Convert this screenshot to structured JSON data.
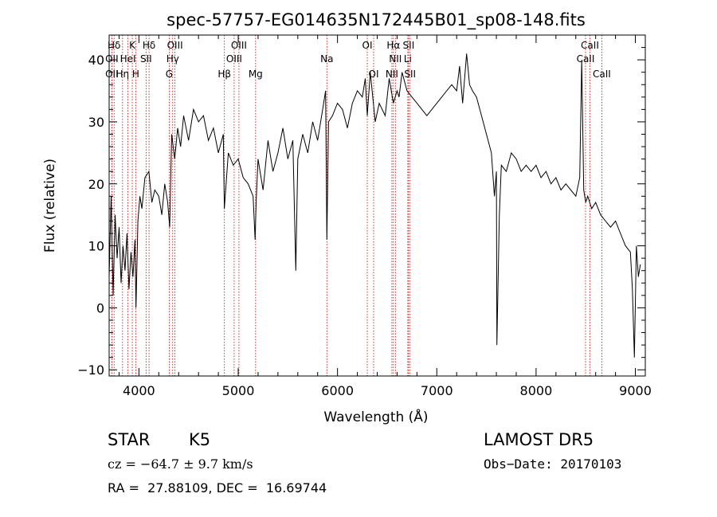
{
  "chart_data": {
    "type": "line",
    "title": "spec-57757-EG014635N172445B01_sp08-148.fits",
    "xlabel": "Wavelength (Å)",
    "ylabel": "Flux (relative)",
    "xlim": [
      3700,
      9100
    ],
    "ylim": [
      -11,
      44
    ],
    "xticks": [
      4000,
      5000,
      6000,
      7000,
      8000,
      9000
    ],
    "yticks": [
      -10,
      0,
      10,
      20,
      30,
      40
    ],
    "grid": false,
    "series": [
      {
        "color": "#000000",
        "x": [
          3700,
          3720,
          3740,
          3760,
          3780,
          3800,
          3820,
          3840,
          3860,
          3880,
          3900,
          3920,
          3940,
          3960,
          3970,
          3990,
          4010,
          4030,
          4060,
          4100,
          4130,
          4160,
          4200,
          4230,
          4260,
          4290,
          4310,
          4330,
          4360,
          4390,
          4420,
          4450,
          4500,
          4550,
          4600,
          4650,
          4700,
          4750,
          4800,
          4850,
          4860,
          4900,
          4950,
          5000,
          5050,
          5100,
          5150,
          5170,
          5180,
          5200,
          5250,
          5300,
          5350,
          5400,
          5450,
          5500,
          5550,
          5580,
          5600,
          5650,
          5700,
          5750,
          5800,
          5850,
          5880,
          5893,
          5910,
          5950,
          6000,
          6050,
          6100,
          6150,
          6200,
          6250,
          6280,
          6300,
          6330,
          6380,
          6420,
          6480,
          6520,
          6563,
          6600,
          6620,
          6650,
          6700,
          6750,
          6800,
          6850,
          6900,
          6950,
          7000,
          7050,
          7100,
          7150,
          7200,
          7230,
          7260,
          7280,
          7300,
          7330,
          7360,
          7400,
          7450,
          7500,
          7550,
          7580,
          7600,
          7605,
          7630,
          7650,
          7700,
          7750,
          7800,
          7850,
          7900,
          7950,
          8000,
          8050,
          8100,
          8150,
          8200,
          8250,
          8300,
          8350,
          8400,
          8440,
          8460,
          8480,
          8500,
          8520,
          8560,
          8600,
          8650,
          8700,
          8750,
          8800,
          8850,
          8900,
          8950,
          8970,
          8990,
          9010,
          9030,
          9050
        ],
        "y": [
          5,
          18,
          2,
          15,
          8,
          13,
          4,
          10,
          6,
          12,
          3,
          9,
          5,
          11,
          0,
          14,
          18,
          16,
          21,
          22,
          17,
          19,
          18,
          15,
          20,
          17,
          13,
          28,
          24,
          29,
          26,
          31,
          27,
          32,
          30,
          31,
          27,
          29,
          25,
          28,
          16,
          25,
          23,
          24,
          21,
          20,
          18,
          11,
          17,
          24,
          19,
          27,
          22,
          25,
          29,
          24,
          27,
          6,
          24,
          28,
          25,
          30,
          27,
          32,
          35,
          11,
          30,
          31,
          33,
          32,
          29,
          33,
          35,
          34,
          37,
          31,
          38,
          30,
          33,
          31,
          37,
          33,
          35,
          34,
          38,
          35,
          34,
          33,
          32,
          31,
          32,
          33,
          34,
          35,
          36,
          35,
          39,
          33,
          37,
          41,
          36,
          35,
          34,
          31,
          28,
          25,
          18,
          22,
          -6,
          15,
          23,
          22,
          25,
          24,
          22,
          23,
          22,
          23,
          21,
          22,
          20,
          21,
          19,
          20,
          19,
          18,
          21,
          40,
          19,
          17,
          18,
          16,
          17,
          15,
          14,
          13,
          14,
          12,
          10,
          9,
          3,
          -8,
          10,
          5,
          7
        ],
        "labels": []
      }
    ],
    "lines": [
      {
        "label": "Hδ",
        "x": 3750,
        "row": 1
      },
      {
        "label": "K",
        "x": 3933,
        "row": 1
      },
      {
        "label": "Hδ",
        "x": 4102,
        "row": 1
      },
      {
        "label": "OIII",
        "x": 4363,
        "row": 1
      },
      {
        "label": "OIII",
        "x": 5007,
        "row": 1
      },
      {
        "label": "OI",
        "x": 6300,
        "row": 1
      },
      {
        "label": "Hα",
        "x": 6563,
        "row": 1
      },
      {
        "label": "SII",
        "x": 6716,
        "row": 1
      },
      {
        "label": "CaII",
        "x": 8542,
        "row": 1
      },
      {
        "label": "OII",
        "x": 3727,
        "row": 2
      },
      {
        "label": "HeI",
        "x": 3889,
        "row": 2
      },
      {
        "label": "SII",
        "x": 4072,
        "row": 2
      },
      {
        "label": "Hγ",
        "x": 4340,
        "row": 2
      },
      {
        "label": "OIII",
        "x": 4959,
        "row": 2
      },
      {
        "label": "Na",
        "x": 5893,
        "row": 2
      },
      {
        "label": "NII",
        "x": 6583,
        "row": 2
      },
      {
        "label": "Li",
        "x": 6708,
        "row": 2
      },
      {
        "label": "CaII",
        "x": 8498,
        "row": 2
      },
      {
        "label": "OII",
        "x": 3727,
        "row": 3
      },
      {
        "label": "Hη",
        "x": 3835,
        "row": 3
      },
      {
        "label": "H",
        "x": 3968,
        "row": 3
      },
      {
        "label": "G",
        "x": 4305,
        "row": 3
      },
      {
        "label": "Hβ",
        "x": 4861,
        "row": 3
      },
      {
        "label": "Mg",
        "x": 5175,
        "row": 3
      },
      {
        "label": "OI",
        "x": 6364,
        "row": 3
      },
      {
        "label": "NII",
        "x": 6548,
        "row": 3
      },
      {
        "label": "SII",
        "x": 6731,
        "row": 3
      },
      {
        "label": "CaII",
        "x": 8662,
        "row": 3
      }
    ]
  },
  "info": {
    "class": "STAR",
    "subclass": "K5",
    "survey": "LAMOST DR5",
    "cz": "cz = −64.7 ± 9.7 km/s",
    "obs_date": "Obs−Date: 20170103",
    "radec": "RA =  27.88109, DEC =  16.69744"
  }
}
